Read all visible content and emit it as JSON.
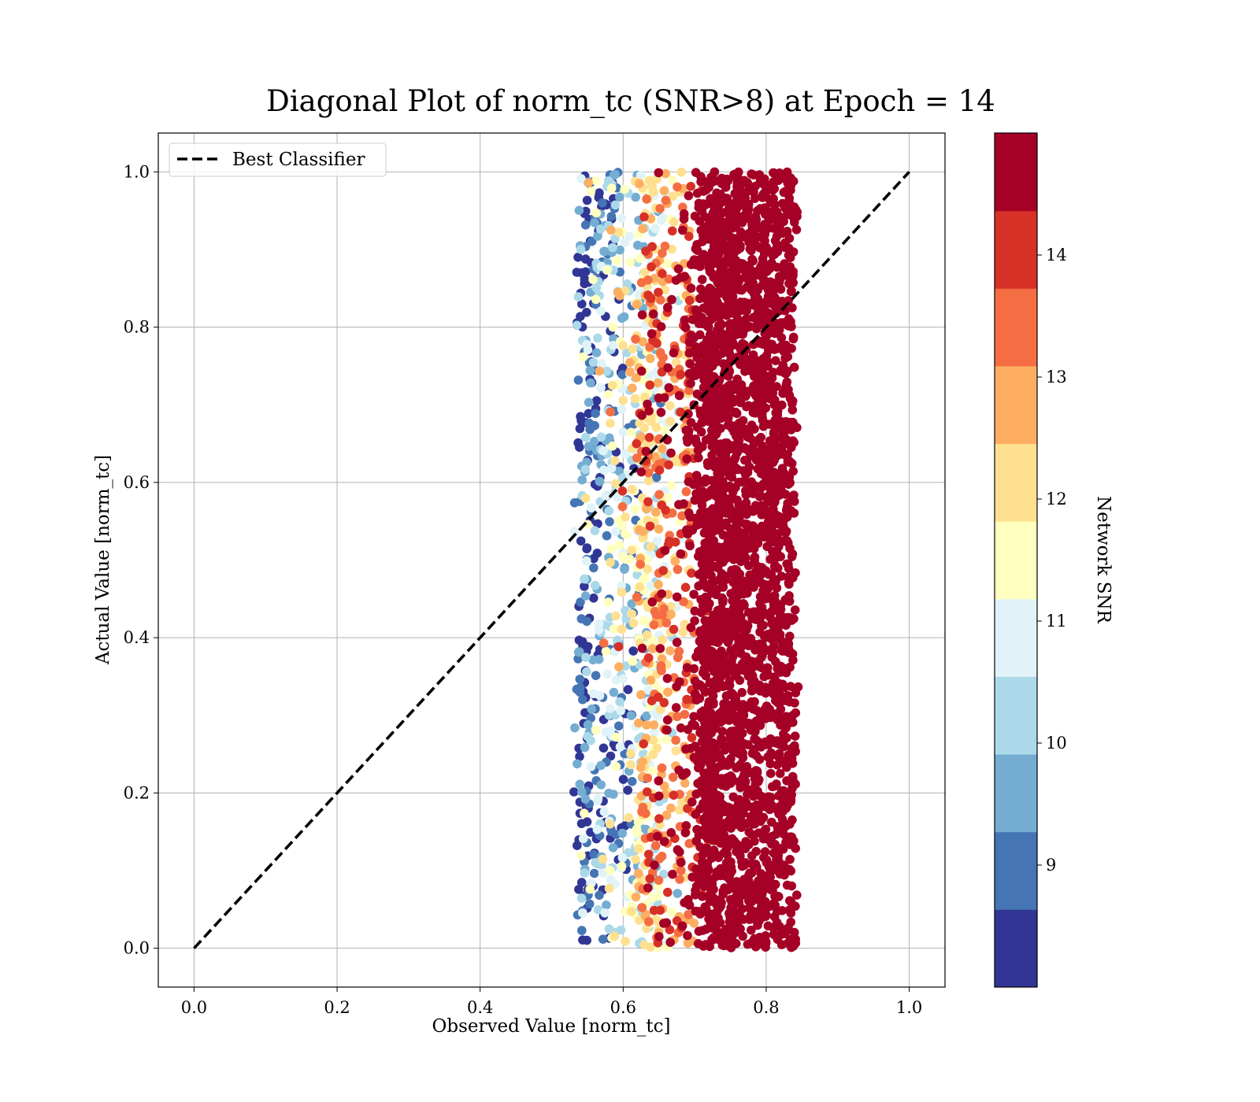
{
  "chart_data": {
    "type": "scatter",
    "title": "Diagonal Plot of norm_tc (SNR>8) at Epoch = 14",
    "xlabel": "Observed Value [norm_tc]",
    "ylabel": "Actual Value [norm_tc]",
    "xlim": [
      -0.05,
      1.05
    ],
    "ylim": [
      -0.05,
      1.05
    ],
    "xticks": [
      "0.0",
      "0.2",
      "0.4",
      "0.6",
      "0.8",
      "1.0"
    ],
    "yticks": [
      "0.0",
      "0.2",
      "0.4",
      "0.6",
      "0.8",
      "1.0"
    ],
    "grid": true,
    "legend": {
      "position": "upper-left",
      "entries": [
        {
          "label": "Best Classifier",
          "style": "black dashed line"
        }
      ]
    },
    "reference_line": {
      "name": "Best Classifier",
      "x": [
        0.0,
        1.0
      ],
      "y": [
        0.0,
        1.0
      ],
      "color": "#000000",
      "dash": true
    },
    "scatter_summary": {
      "x_range": [
        0.52,
        0.86
      ],
      "y_range": [
        0.0,
        1.0
      ],
      "color_trend": "low SNR (blue) near x≈0.53–0.60, high SNR (dark red) concentrated at x≈0.68–0.85"
    },
    "colorbar": {
      "label": "Network SNR",
      "range": [
        8,
        15
      ],
      "tick_labels": [
        "9",
        "10",
        "11",
        "12",
        "13",
        "14"
      ],
      "tick_values": [
        9,
        10,
        11,
        12,
        13,
        14
      ],
      "levels": [
        "#313695",
        "#4575b4",
        "#74add1",
        "#abd9e9",
        "#e0f3f8",
        "#ffffbf",
        "#fee090",
        "#fdae61",
        "#f46d43",
        "#d73027",
        "#a50026"
      ]
    }
  }
}
